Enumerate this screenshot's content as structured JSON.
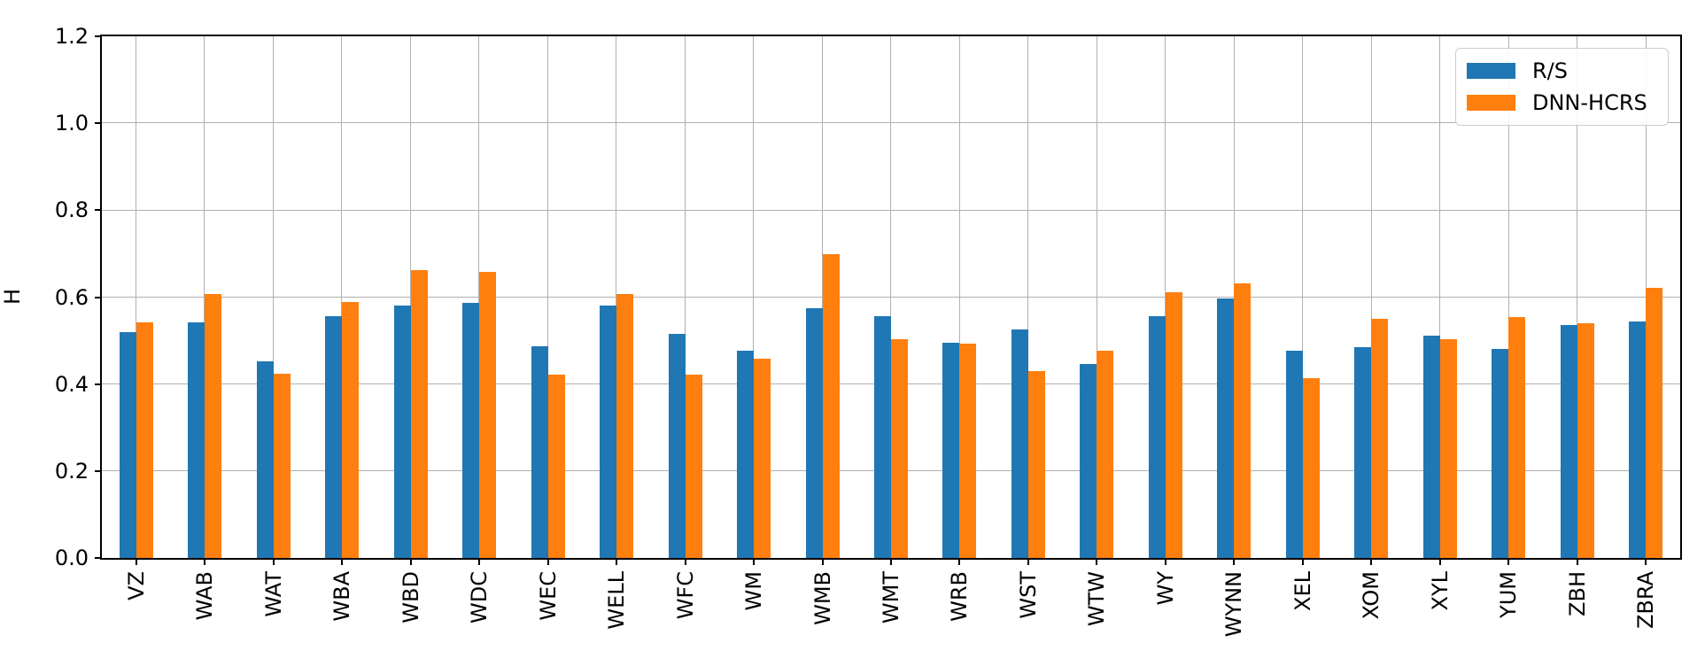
{
  "style": {
    "background": "#ffffff",
    "grid_color": "#b0b0b0",
    "axis_color": "#000000",
    "text_color": "#000000",
    "legend_border_color": "#cccccc",
    "series_colors": {
      "rs": "#1f77b4",
      "dnn_hcrs": "#ff7f0e"
    }
  },
  "chart_data": {
    "type": "bar",
    "title": "",
    "xlabel": "",
    "ylabel": "H",
    "ylim": [
      0.0,
      1.2
    ],
    "yticks": [
      "0.0",
      "0.2",
      "0.4",
      "0.6",
      "0.8",
      "1.0",
      "1.2"
    ],
    "grid": true,
    "legend_position": "upper right",
    "xtick_rotation": 90,
    "categories": [
      "VZ",
      "WAB",
      "WAT",
      "WBA",
      "WBD",
      "WDC",
      "WEC",
      "WELL",
      "WFC",
      "WM",
      "WMB",
      "WMT",
      "WRB",
      "WST",
      "WTW",
      "WY",
      "WYNN",
      "XEL",
      "XOM",
      "XYL",
      "YUM",
      "ZBH",
      "ZBRA"
    ],
    "series": [
      {
        "name": "R/S",
        "color": "#1f77b4",
        "values": [
          0.519,
          0.542,
          0.452,
          0.557,
          0.581,
          0.586,
          0.487,
          0.581,
          0.515,
          0.477,
          0.575,
          0.557,
          0.495,
          0.526,
          0.446,
          0.557,
          0.597,
          0.477,
          0.485,
          0.511,
          0.481,
          0.536,
          0.544
        ]
      },
      {
        "name": "DNN-HCRS",
        "color": "#ff7f0e",
        "values": [
          0.542,
          0.607,
          0.423,
          0.589,
          0.663,
          0.658,
          0.422,
          0.608,
          0.421,
          0.458,
          0.699,
          0.503,
          0.493,
          0.43,
          0.477,
          0.612,
          0.631,
          0.413,
          0.551,
          0.503,
          0.555,
          0.539,
          0.621
        ]
      }
    ]
  }
}
